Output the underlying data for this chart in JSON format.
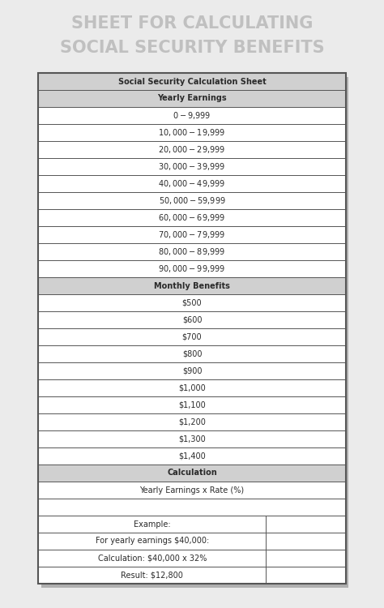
{
  "title_line1": "SHEET FOR CALCULATING",
  "title_line2": "SOCIAL SECURITY BENEFITS",
  "title_color": "#c0c0c0",
  "title_fontsize": 15,
  "bg_color": "#ebebeb",
  "table_bg": "#ffffff",
  "header1": "Social Security Calculation Sheet",
  "header2": "Yearly Earnings",
  "yearly_earnings": [
    "$0 - $9,999",
    "$10,000 - $19,999",
    "$20,000 - $29,999",
    "$30,000 - $39,999",
    "$40,000 - $49,999",
    "$50,000 - $59,999",
    "$60,000 - $69,999",
    "$70,000 - $79,999",
    "$80,000 - $89,999",
    "$90,000 - $99,999"
  ],
  "header3": "Monthly Benefits",
  "monthly_benefits": [
    "$500",
    "$600",
    "$700",
    "$800",
    "$900",
    "$1,000",
    "$1,100",
    "$1,200",
    "$1,300",
    "$1,400"
  ],
  "header4": "Calculation",
  "calc_row": "Yearly Earnings x Rate (%)",
  "example_rows": [
    "Example:",
    "For yearly earnings $40,000:",
    "Calculation: $40,000 x 32%",
    "Result: $12,800"
  ],
  "border_color": "#555555",
  "text_color": "#2a2a2a",
  "header_bg": "#d0d0d0",
  "shadow_color": "#b0b0b0",
  "split_ratio": 0.74
}
